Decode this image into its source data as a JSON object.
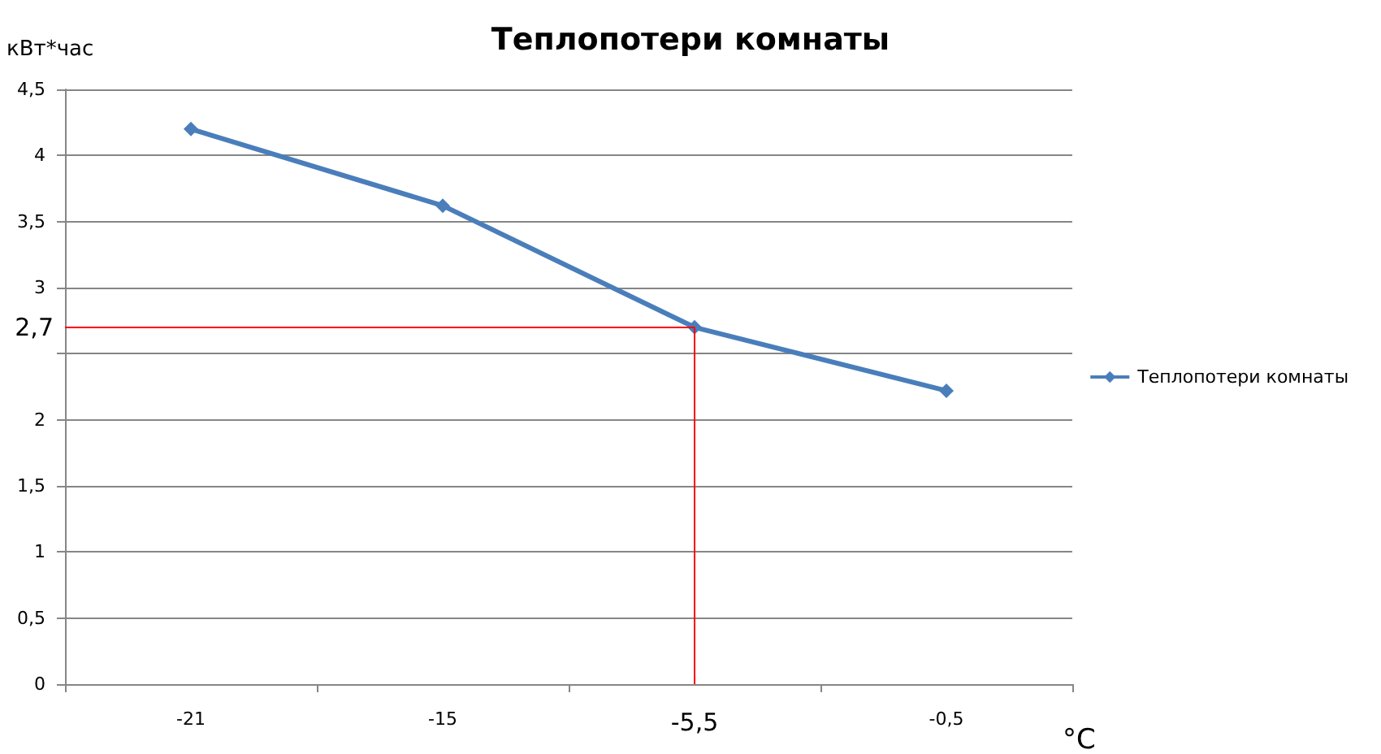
{
  "chart_data": {
    "type": "line",
    "title": "Теплопотери комнаты",
    "xlabel": "°C",
    "ylabel": "кВт*час",
    "categories": [
      "-21",
      "-15",
      "-5,5",
      "-0,5"
    ],
    "series": [
      {
        "name": "Теплопотери комнаты",
        "color": "#4a7ebb",
        "values": [
          4.2,
          3.62,
          2.7,
          2.22
        ]
      }
    ],
    "ylim": [
      0,
      4.5
    ],
    "yticks": [
      {
        "value": 0,
        "label": "0"
      },
      {
        "value": 0.5,
        "label": "0,5"
      },
      {
        "value": 1,
        "label": "1"
      },
      {
        "value": 1.5,
        "label": "1,5"
      },
      {
        "value": 2,
        "label": "2"
      },
      {
        "value": 2.5,
        "label": null
      },
      {
        "value": 3,
        "label": "3"
      },
      {
        "value": 3.5,
        "label": "3,5"
      },
      {
        "value": 4,
        "label": "4"
      },
      {
        "value": 4.5,
        "label": "4,5"
      }
    ],
    "ref_lines": [
      {
        "axis": "y",
        "value": 2.7,
        "label": "2,7",
        "color": "#ff0000"
      },
      {
        "axis": "x",
        "value": "-5,5",
        "color": "#ff0000"
      }
    ],
    "grid": "y",
    "legend": "right",
    "marker": "diamond",
    "line_style": "solid"
  }
}
